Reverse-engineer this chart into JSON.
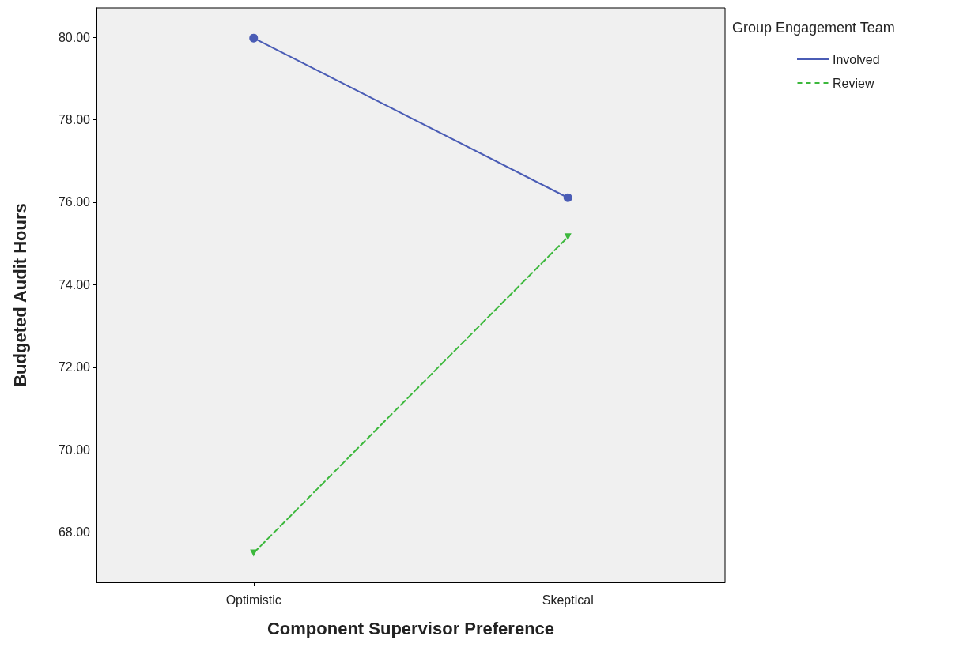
{
  "chart_data": {
    "type": "line",
    "xlabel": "Component Supervisor Preference",
    "ylabel": "Budgeted Audit Hours",
    "legend_title": "Group Engagement Team",
    "categories": [
      "Optimistic",
      "Skeptical"
    ],
    "series": [
      {
        "name": "Involved",
        "color": "#4a5cb5",
        "values": [
          79.98,
          76.11
        ],
        "marker": "circle",
        "line_style": "solid"
      },
      {
        "name": "Review",
        "color": "#3cb83c",
        "values": [
          67.5,
          75.16
        ],
        "marker": "triangle",
        "line_style": "dashed"
      }
    ],
    "ylim": [
      66.79,
      80.71
    ],
    "yticks": [
      {
        "value": 68,
        "label": "68.00"
      },
      {
        "value": 70,
        "label": "70.00"
      },
      {
        "value": 72,
        "label": "72.00"
      },
      {
        "value": 74,
        "label": "74.00"
      },
      {
        "value": 76,
        "label": "76.00"
      },
      {
        "value": 78,
        "label": "78.00"
      },
      {
        "value": 80,
        "label": "80.00"
      }
    ],
    "grid": false,
    "legend": "top right"
  }
}
